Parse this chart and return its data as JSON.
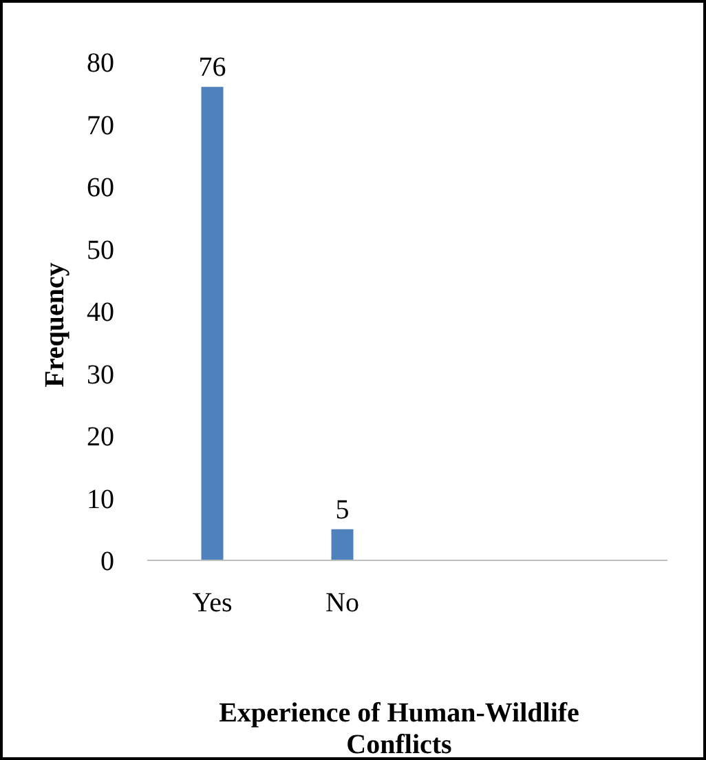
{
  "chart_data": {
    "type": "bar",
    "categories": [
      "Yes",
      "No",
      null,
      null
    ],
    "values": [
      76,
      5,
      null,
      null
    ],
    "color": "#4f81bd",
    "ylim": [
      0,
      80
    ],
    "yticks": [
      0,
      10,
      20,
      30,
      40,
      50,
      60,
      70,
      80
    ],
    "ylabel": "Frequency",
    "xlabel": "Experience of Human-Wildlife Conflicts",
    "data_labels": true,
    "grid": false
  }
}
